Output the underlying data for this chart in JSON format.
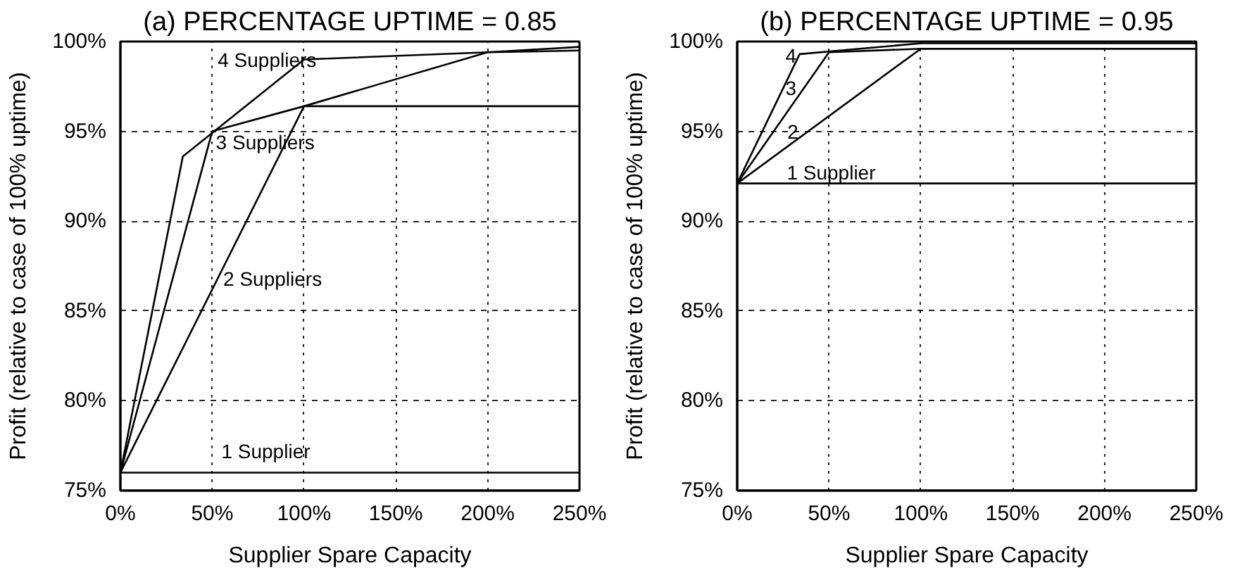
{
  "chart_data": [
    {
      "type": "line",
      "title": "(a) PERCENTAGE UPTIME = 0.85",
      "xlabel": "Supplier Spare Capacity",
      "ylabel": "Profit (relative to case of 100% uptime)",
      "xlim": [
        0,
        250
      ],
      "ylim": [
        75,
        100
      ],
      "xticks": [
        {
          "value": 0,
          "label": "0%"
        },
        {
          "value": 50,
          "label": "50%"
        },
        {
          "value": 100,
          "label": "100%"
        },
        {
          "value": 150,
          "label": "150%"
        },
        {
          "value": 200,
          "label": "200%"
        },
        {
          "value": 250,
          "label": "250%"
        }
      ],
      "yticks": [
        {
          "value": 75,
          "label": "75%"
        },
        {
          "value": 80,
          "label": "80%"
        },
        {
          "value": 85,
          "label": "85%"
        },
        {
          "value": 90,
          "label": "90%"
        },
        {
          "value": 95,
          "label": "95%"
        },
        {
          "value": 100,
          "label": "100%"
        }
      ],
      "grid": true,
      "series": [
        {
          "name": "1 Supplier",
          "color": "#000000",
          "x": [
            0,
            250
          ],
          "values": [
            76,
            76
          ]
        },
        {
          "name": "2 Suppliers",
          "color": "#000000",
          "x": [
            0,
            100,
            250
          ],
          "values": [
            76,
            96.4,
            96.4
          ]
        },
        {
          "name": "3 Suppliers",
          "color": "#000000",
          "x": [
            0,
            50,
            100,
            200,
            250
          ],
          "values": [
            76,
            95,
            96.4,
            99.4,
            99.5
          ]
        },
        {
          "name": "4 Suppliers",
          "color": "#000000",
          "x": [
            0,
            34,
            100,
            200,
            250
          ],
          "values": [
            76,
            93.6,
            99.0,
            99.4,
            99.7
          ]
        }
      ]
    },
    {
      "type": "line",
      "title": "(b) PERCENTAGE UPTIME = 0.95",
      "xlabel": "Supplier Spare Capacity",
      "ylabel": "Profit (relative to case of 100% uptime)",
      "xlim": [
        0,
        250
      ],
      "ylim": [
        75,
        100
      ],
      "xticks": [
        {
          "value": 0,
          "label": "0%"
        },
        {
          "value": 50,
          "label": "50%"
        },
        {
          "value": 100,
          "label": "100%"
        },
        {
          "value": 150,
          "label": "150%"
        },
        {
          "value": 200,
          "label": "200%"
        },
        {
          "value": 250,
          "label": "250%"
        }
      ],
      "yticks": [
        {
          "value": 75,
          "label": "75%"
        },
        {
          "value": 80,
          "label": "80%"
        },
        {
          "value": 85,
          "label": "85%"
        },
        {
          "value": 90,
          "label": "90%"
        },
        {
          "value": 95,
          "label": "95%"
        },
        {
          "value": 100,
          "label": "100%"
        }
      ],
      "grid": true,
      "series": [
        {
          "name": "1 Supplier",
          "color": "#000000",
          "x": [
            0,
            250
          ],
          "values": [
            92.1,
            92.1
          ]
        },
        {
          "name": "2",
          "color": "#000000",
          "x": [
            0,
            100,
            250
          ],
          "values": [
            92.1,
            99.6,
            99.6
          ]
        },
        {
          "name": "3",
          "color": "#000000",
          "x": [
            0,
            50,
            100,
            250
          ],
          "values": [
            92.1,
            99.4,
            99.6,
            99.6
          ]
        },
        {
          "name": "4",
          "color": "#000000",
          "x": [
            0,
            34,
            100,
            200,
            250
          ],
          "values": [
            92.1,
            99.3,
            99.9,
            99.9,
            99.9
          ]
        }
      ]
    }
  ]
}
